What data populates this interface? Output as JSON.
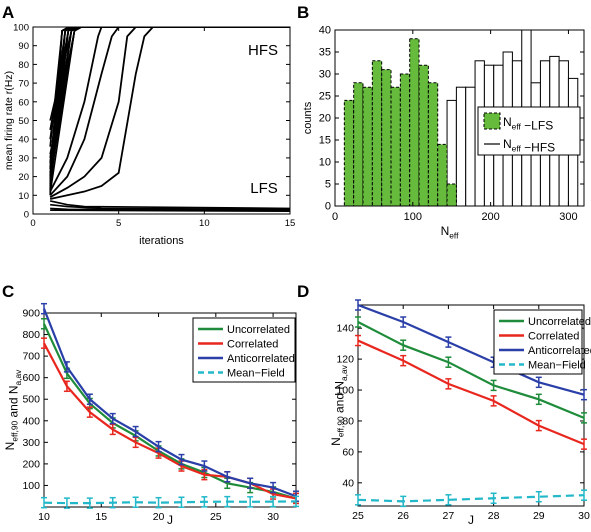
{
  "chart_data": [
    {
      "panel": "A",
      "type": "line",
      "xlabel": "iterations",
      "ylabel": "mean firing rate  r(Hz)",
      "xlim": [
        0,
        15
      ],
      "ylim": [
        0,
        100
      ],
      "xticks": [
        0,
        5,
        10,
        15
      ],
      "yticks": [
        0,
        10,
        20,
        30,
        40,
        50,
        60,
        70,
        80,
        90,
        100
      ],
      "annotations": [
        "HFS",
        "LFS"
      ],
      "hfs_traces_start_rates": [
        10,
        12,
        14,
        16,
        18,
        20,
        22,
        25,
        28,
        32,
        36,
        40,
        45,
        50,
        11,
        13,
        15,
        17,
        19,
        21,
        24,
        27,
        30
      ],
      "hfs_slow_traces": [
        {
          "x": [
            1,
            2,
            3,
            3.8,
            4
          ],
          "y": [
            12,
            30,
            60,
            95,
            100
          ]
        },
        {
          "x": [
            1,
            2,
            3,
            4,
            4.6,
            5
          ],
          "y": [
            10,
            20,
            40,
            75,
            95,
            100
          ]
        },
        {
          "x": [
            1,
            2,
            3,
            4,
            5,
            5.5,
            6
          ],
          "y": [
            9,
            14,
            20,
            30,
            60,
            95,
            100
          ]
        },
        {
          "x": [
            1,
            2,
            3,
            4,
            5,
            6,
            6.5,
            7
          ],
          "y": [
            8,
            10,
            12,
            15,
            22,
            75,
            95,
            100
          ]
        }
      ],
      "lfs_traces": [
        {
          "x": [
            1,
            2,
            3,
            15
          ],
          "y": [
            7,
            5,
            4,
            3
          ]
        },
        {
          "x": [
            1,
            2,
            4,
            15
          ],
          "y": [
            5,
            4,
            3,
            2.5
          ]
        },
        {
          "x": [
            1,
            2,
            15
          ],
          "y": [
            3,
            2.5,
            2
          ]
        },
        {
          "x": [
            1,
            15
          ],
          "y": [
            2,
            1.5
          ]
        }
      ]
    },
    {
      "panel": "B",
      "type": "bar",
      "xlabel": "N_eff",
      "ylabel": "counts",
      "xlim": [
        0,
        320
      ],
      "ylim": [
        0,
        40
      ],
      "xticks": [
        0,
        100,
        200,
        300
      ],
      "yticks": [
        0,
        5,
        10,
        15,
        20,
        25,
        30,
        35,
        40
      ],
      "bin_width": 12,
      "series": [
        {
          "name": "N_eff −LFS",
          "color": "#66BB3D",
          "bin_starts": [
            12,
            24,
            36,
            48,
            60,
            72,
            84,
            96,
            108,
            120,
            132,
            144
          ],
          "counts": [
            24,
            28,
            27,
            33,
            31,
            27,
            30,
            38,
            32,
            28,
            14,
            5
          ]
        },
        {
          "name": "N_eff −HFS",
          "color": "#FFFFFF",
          "bin_starts": [
            132,
            144,
            156,
            168,
            180,
            192,
            204,
            216,
            228,
            240,
            252,
            264,
            276,
            288,
            300
          ],
          "counts": [
            9,
            24,
            27,
            27,
            33,
            32,
            32,
            35,
            33,
            40,
            28,
            33,
            34,
            33,
            29
          ]
        }
      ],
      "legend_position": "right"
    },
    {
      "panel": "C",
      "type": "line",
      "xlabel": "J",
      "ylabel": "N_eff,90 and N_a,av",
      "xlim": [
        10,
        32
      ],
      "ylim": [
        0,
        900
      ],
      "xticks": [
        10,
        15,
        20,
        25,
        30
      ],
      "yticks": [
        100,
        200,
        300,
        400,
        500,
        600,
        700,
        800,
        900
      ],
      "x": [
        10,
        12,
        14,
        16,
        18,
        20,
        22,
        24,
        26,
        28,
        30,
        32
      ],
      "series": [
        {
          "name": "Uncorrelated",
          "color": "#1E8C3A",
          "values": [
            850,
            620,
            480,
            390,
            330,
            260,
            200,
            160,
            110,
            90,
            70,
            40
          ]
        },
        {
          "name": "Correlated",
          "color": "#E8271F",
          "values": [
            760,
            560,
            440,
            360,
            300,
            250,
            190,
            150,
            140,
            110,
            60,
            40
          ]
        },
        {
          "name": "Anticorrelated",
          "color": "#2A3FA8",
          "values": [
            920,
            650,
            500,
            410,
            350,
            280,
            220,
            190,
            140,
            110,
            90,
            50
          ]
        },
        {
          "name": "Mean−Field",
          "color": "#22B8C9",
          "dashed": true,
          "values": [
            20,
            18,
            18,
            20,
            22,
            20,
            22,
            24,
            25,
            24,
            25,
            26
          ]
        }
      ],
      "legend_position": "top-right"
    },
    {
      "panel": "D",
      "type": "line",
      "xlabel": "J",
      "ylabel": "N_eff,90 and N_a,av",
      "xlim": [
        25,
        30
      ],
      "ylim": [
        25,
        155
      ],
      "xticks": [
        25,
        26,
        27,
        28,
        29,
        30
      ],
      "yticks": [
        40,
        60,
        80,
        100,
        120,
        140
      ],
      "x": [
        25,
        26,
        27,
        28,
        29,
        30
      ],
      "series": [
        {
          "name": "Uncorrelated",
          "color": "#1E8C3A",
          "values": [
            144,
            129,
            118,
            103,
            94,
            82
          ]
        },
        {
          "name": "Correlated",
          "color": "#E8271F",
          "values": [
            132,
            119,
            104,
            93,
            77,
            65
          ]
        },
        {
          "name": "Anticorrelated",
          "color": "#2A3FA8",
          "values": [
            155,
            144,
            131,
            118,
            105,
            97
          ]
        },
        {
          "name": "Mean−Field",
          "color": "#22B8C9",
          "dashed": true,
          "values": [
            29,
            28,
            29,
            30,
            31,
            32
          ]
        }
      ],
      "legend_position": "top-right"
    }
  ]
}
